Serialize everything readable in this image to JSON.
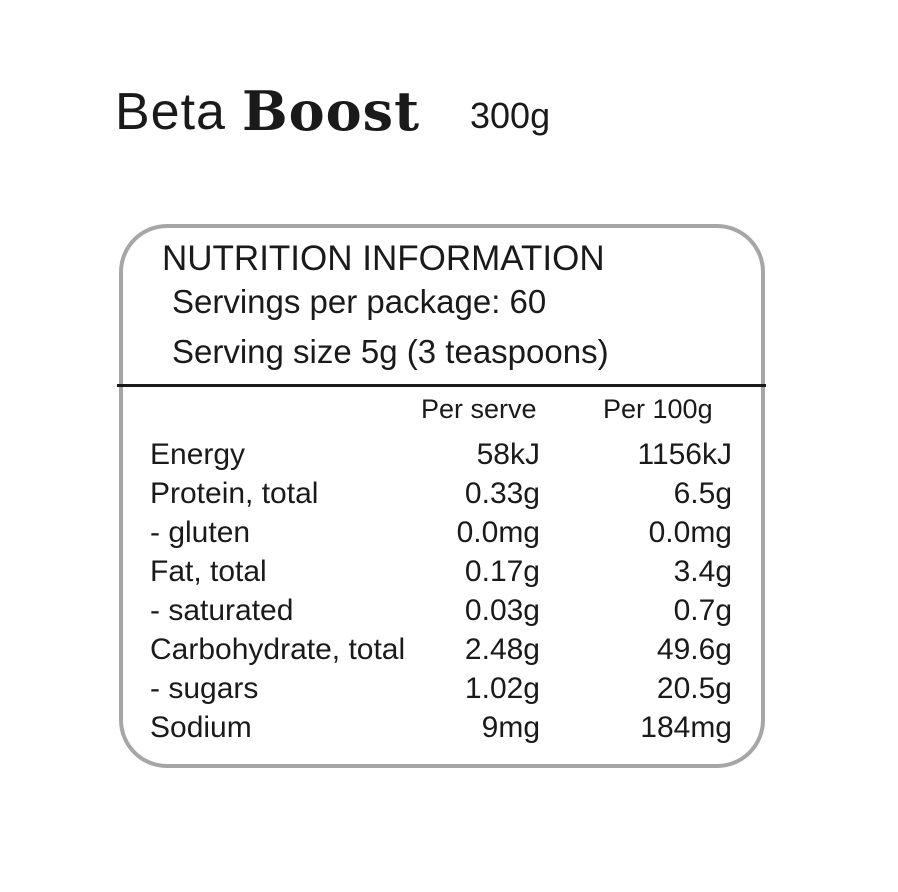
{
  "brand": {
    "name_light": "Beta",
    "name_bold": "Boost",
    "weight": "300g"
  },
  "nutrition": {
    "title": "NUTRITION INFORMATION",
    "servings_per_package": "Servings per package: 60",
    "serving_size": "Serving size 5g (3 teaspoons)",
    "columns": {
      "per_serve": "Per serve",
      "per_100g": "Per 100g"
    },
    "rows": [
      {
        "label": "Energy",
        "per_serve": "58kJ",
        "per_100g": "1156kJ"
      },
      {
        "label": "Protein, total",
        "per_serve": "0.33g",
        "per_100g": "6.5g"
      },
      {
        "label": "- gluten",
        "per_serve": "0.0mg",
        "per_100g": "0.0mg"
      },
      {
        "label": "Fat, total",
        "per_serve": "0.17g",
        "per_100g": "3.4g"
      },
      {
        "label": "- saturated",
        "per_serve": "0.03g",
        "per_100g": "0.7g"
      },
      {
        "label": "Carbohydrate, total",
        "per_serve": "2.48g",
        "per_100g": "49.6g"
      },
      {
        "label": "- sugars",
        "per_serve": "1.02g",
        "per_100g": "20.5g"
      },
      {
        "label": "Sodium",
        "per_serve": "9mg",
        "per_100g": "184mg"
      }
    ]
  },
  "colors": {
    "border": "#a6a6a6",
    "text": "#1a1a1a",
    "background": "#ffffff"
  }
}
